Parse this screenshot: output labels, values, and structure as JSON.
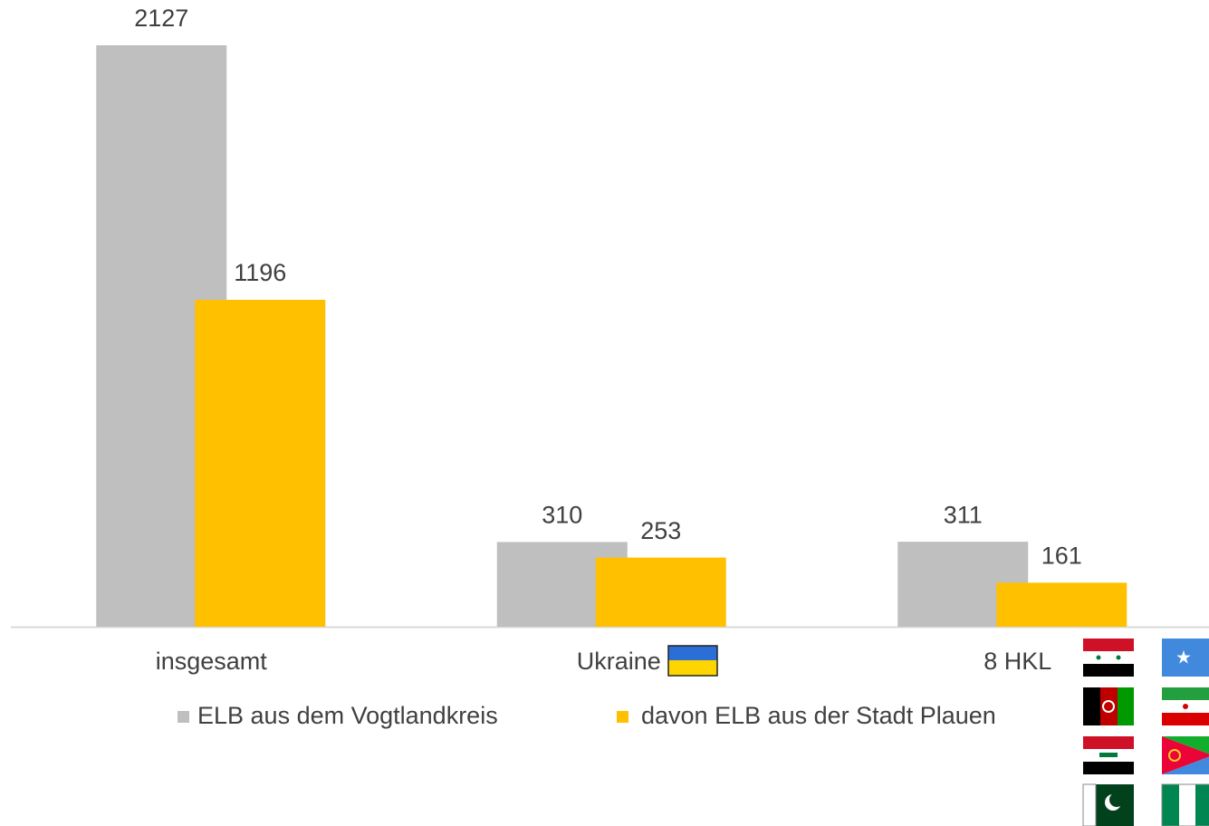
{
  "chart_data": {
    "type": "bar",
    "categories": [
      "insgesamt",
      "Ukraine",
      "8 HKL"
    ],
    "series": [
      {
        "name": "ELB aus dem Vogtlandkreis",
        "color": "#bfbfbf",
        "values": [
          2127,
          310,
          311
        ]
      },
      {
        "name": "davon ELB aus der Stadt Plauen",
        "color": "#ffc000",
        "values": [
          1196,
          253,
          161
        ]
      }
    ]
  }
}
